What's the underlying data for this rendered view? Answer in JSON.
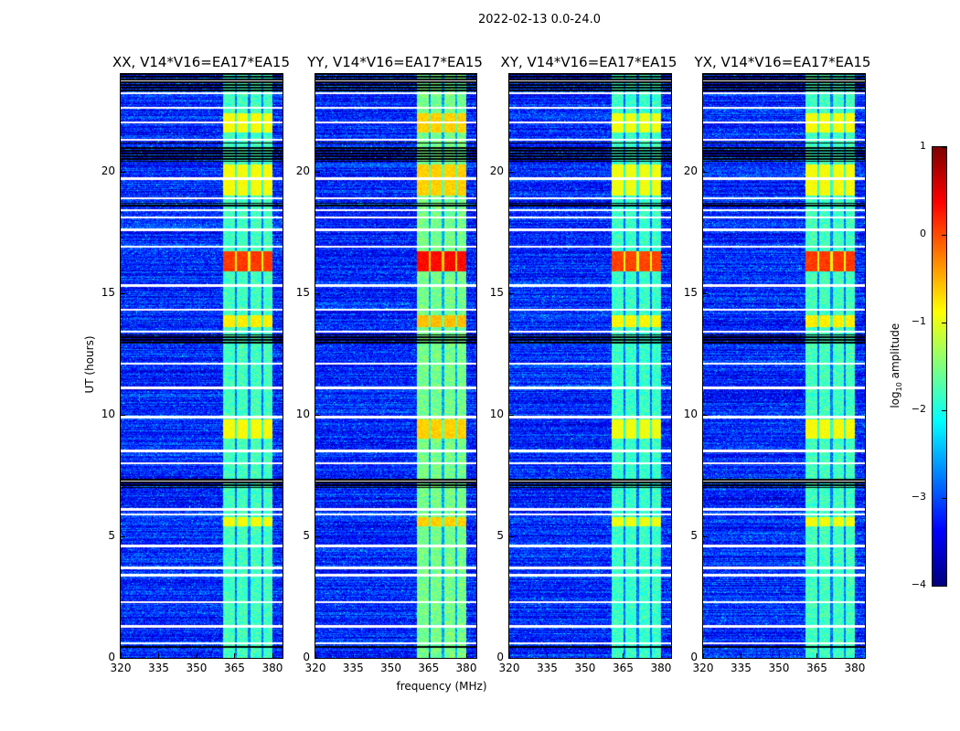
{
  "chart_data": {
    "type": "heatmap",
    "title": "2022-02-13 0.0-24.0",
    "xlabel": "frequency (MHz)",
    "ylabel": "UT (hours)",
    "xlim": [
      320,
      384
    ],
    "ylim": [
      0,
      24
    ],
    "xticks": [
      320,
      335,
      350,
      365,
      380
    ],
    "yticks": [
      0,
      5,
      10,
      15,
      20
    ],
    "panels": [
      {
        "title": "XX, V14*V16=EA17*EA15",
        "band_boost": 0.0
      },
      {
        "title": "YY, V14*V16=EA17*EA15",
        "band_boost": 0.25
      },
      {
        "title": "XY, V14*V16=EA17*EA15",
        "band_boost": -0.05
      },
      {
        "title": "YX, V14*V16=EA17*EA15",
        "band_boost": 0.0
      }
    ],
    "colorbar": {
      "label": "log",
      "label_sub": "10",
      "label_rest": " amplitude",
      "range": [
        -4,
        1
      ],
      "ticks": [
        1,
        0,
        -1,
        -2,
        -3,
        -4
      ],
      "tick_labels": [
        "1",
        "0",
        "−1",
        "−2",
        "−3",
        "−4"
      ],
      "colormap": "jet"
    },
    "background_log_amp": -3.2,
    "rfi_band_mhz": [
      360.5,
      380
    ],
    "rfi_band_log_amp": -1.8,
    "channel_gaps_mhz": [
      365.5,
      370.8,
      376.0
    ],
    "bright_periods": [
      {
        "ut": [
          15.9,
          16.7
        ],
        "log_amp": 0.1
      },
      {
        "ut": [
          13.6,
          14.1
        ],
        "log_amp": -0.8
      },
      {
        "ut": [
          9.0,
          9.8
        ],
        "log_amp": -0.9
      },
      {
        "ut": [
          19.0,
          20.3
        ],
        "log_amp": -0.9
      },
      {
        "ut": [
          21.6,
          22.4
        ],
        "log_amp": -0.9
      },
      {
        "ut": [
          5.4,
          5.8
        ],
        "log_amp": -0.9
      }
    ],
    "flagged_white_ut": [
      0.6,
      1.3,
      2.3,
      3.4,
      3.7,
      4.6,
      5.9,
      6.1,
      7.3,
      8.0,
      8.5,
      9.9,
      11.1,
      12.1,
      13.4,
      14.3,
      15.3,
      16.9,
      17.6,
      18.1,
      18.4,
      18.9,
      19.7,
      21.3,
      22.0,
      22.6,
      23.2,
      23.7
    ],
    "flagged_black_ut": [
      [
        0.4,
        0.5
      ],
      [
        7.0,
        7.4
      ],
      [
        12.9,
        13.3
      ],
      [
        18.5,
        18.7
      ],
      [
        20.4,
        21.0
      ],
      [
        21.1,
        21.2
      ],
      [
        23.3,
        24.0
      ]
    ]
  }
}
